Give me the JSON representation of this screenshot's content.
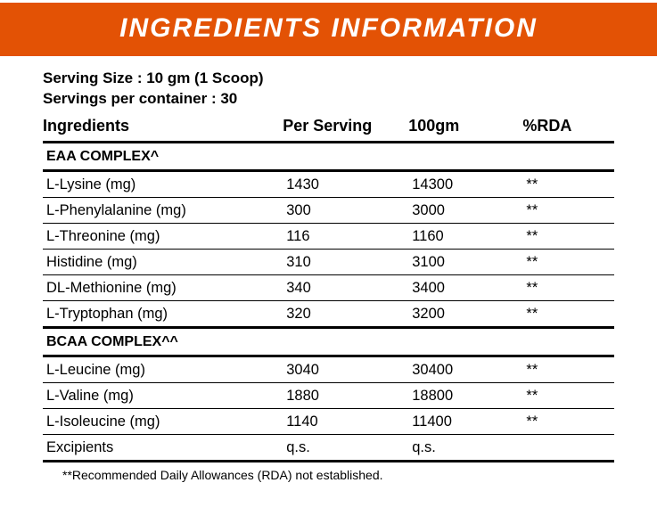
{
  "banner": {
    "title": "INGREDIENTS INFORMATION"
  },
  "serving": {
    "size": "Serving Size : 10 gm (1 Scoop)",
    "per_container": "Servings per container : 30"
  },
  "headers": {
    "c1": "Ingredients",
    "c2": "Per Serving",
    "c3": "100gm",
    "c4": "%RDA"
  },
  "sections": {
    "eaa": {
      "title": "EAA COMPLEX^",
      "rows": [
        {
          "name": "L-Lysine (mg)",
          "ps": "1430",
          "g100": "14300",
          "rda": "**"
        },
        {
          "name": "L-Phenylalanine (mg)",
          "ps": "300",
          "g100": "3000",
          "rda": "**"
        },
        {
          "name": "L-Threonine (mg)",
          "ps": "116",
          "g100": "1160",
          "rda": "**"
        },
        {
          "name": "Histidine (mg)",
          "ps": "310",
          "g100": "3100",
          "rda": "**"
        },
        {
          "name": "DL-Methionine (mg)",
          "ps": "340",
          "g100": "3400",
          "rda": "**"
        },
        {
          "name": "L-Tryptophan (mg)",
          "ps": "320",
          "g100": "3200",
          "rda": "**"
        }
      ]
    },
    "bcaa": {
      "title": "BCAA COMPLEX^^",
      "rows": [
        {
          "name": "L-Leucine (mg)",
          "ps": "3040",
          "g100": "30400",
          "rda": "**"
        },
        {
          "name": "L-Valine (mg)",
          "ps": "1880",
          "g100": "18800",
          "rda": "**"
        },
        {
          "name": "L-Isoleucine (mg)",
          "ps": "1140",
          "g100": "11400",
          "rda": "**"
        },
        {
          "name": "Excipients",
          "ps": "q.s.",
          "g100": "q.s.",
          "rda": ""
        }
      ]
    }
  },
  "footnote": "**Recommended Daily Allowances (RDA) not established."
}
